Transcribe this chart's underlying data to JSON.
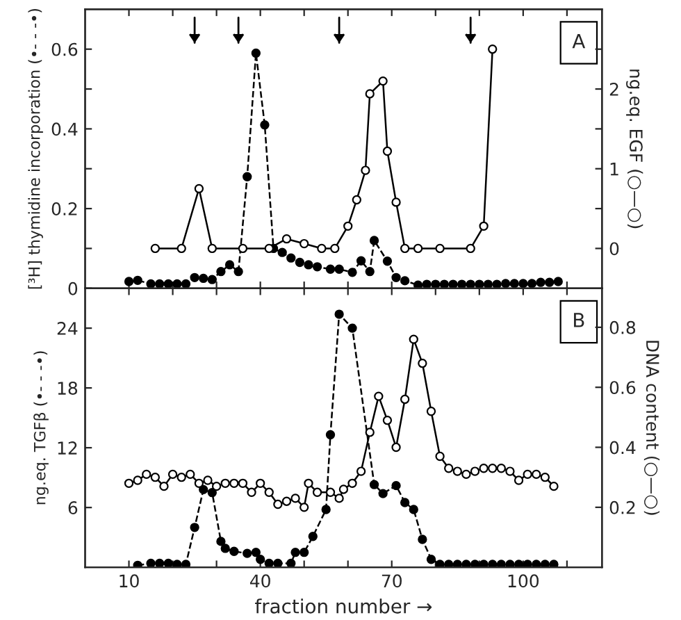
{
  "chart_data": [
    {
      "type": "line",
      "ylabel": "[³H] thymidine incorporation (•- - -•)",
      "y2label": "ng.eq. EGF (○—○)",
      "xlim": [
        0,
        118
      ],
      "xticks": [
        10,
        20,
        30,
        40,
        50,
        60,
        70,
        80,
        90,
        100,
        110
      ],
      "ylim": [
        0,
        0.7
      ],
      "yticks": [
        0,
        {
          "value": 0.1,
          "label": null
        },
        0.2,
        {
          "value": 0.3,
          "label": null
        },
        0.4,
        {
          "value": 0.5,
          "label": null
        },
        0.6
      ],
      "y2lim": [
        -0.5,
        3.0
      ],
      "y2ticks": [
        0,
        {
          "value": 0.5,
          "label": null
        },
        1,
        {
          "value": 1.5,
          "label": null
        },
        2,
        {
          "value": 2.5,
          "label": null
        }
      ],
      "tick_labels": "y",
      "grid": false,
      "legend": false,
      "marker": "circle",
      "annotations": [
        "A"
      ],
      "ref_lines": [
        {
          "axis": "x",
          "value": 25
        },
        {
          "axis": "x",
          "value": 35
        },
        {
          "axis": "x",
          "value": 58
        },
        {
          "axis": "x",
          "value": 88
        }
      ],
      "series": [
        {
          "color": "#000000",
          "line_style": "dashed",
          "x": [
            10,
            12,
            15,
            17,
            19,
            21,
            23,
            25,
            27,
            29,
            31,
            33,
            35,
            37,
            39,
            41,
            43,
            45,
            47,
            49,
            51,
            53,
            56,
            58,
            61,
            63,
            65,
            66,
            69,
            71,
            73,
            76,
            78,
            80,
            82,
            84,
            86,
            88,
            90,
            92,
            94,
            96,
            98,
            100,
            102,
            104,
            106,
            108
          ],
          "values": [
            0.017,
            0.02,
            0.011,
            0.011,
            0.011,
            0.011,
            0.011,
            0.027,
            0.025,
            0.022,
            0.042,
            0.059,
            0.042,
            0.28,
            0.59,
            0.41,
            0.1,
            0.09,
            0.076,
            0.065,
            0.059,
            0.054,
            0.048,
            0.048,
            0.04,
            0.069,
            0.042,
            0.12,
            0.068,
            0.027,
            0.019,
            0.008,
            0.01,
            0.01,
            0.01,
            0.01,
            0.01,
            0.01,
            0.01,
            0.01,
            0.01,
            0.012,
            0.012,
            0.012,
            0.012,
            0.015,
            0.015,
            0.017
          ]
        },
        {
          "color": "#000000",
          "line_style": "solid",
          "axis": "y2",
          "x": [
            16,
            22,
            26,
            29,
            36,
            42,
            46,
            50,
            54,
            57,
            60,
            62,
            64,
            65,
            68,
            69,
            71,
            73,
            76,
            81,
            88,
            91,
            93
          ],
          "values": [
            0,
            0,
            0.75,
            0,
            0,
            0,
            0.12,
            0.06,
            0,
            0,
            0.28,
            0.61,
            0.98,
            1.94,
            2.1,
            1.22,
            0.58,
            0,
            0,
            0,
            0,
            0.28,
            2.5
          ]
        }
      ]
    },
    {
      "type": "line",
      "ylabel": "ng.eq. TGFβ (•- - -•)",
      "y2label": "DNA content (○—○)",
      "xlabel": "fraction number →",
      "xlim": [
        0,
        118
      ],
      "xticks": [
        10,
        {
          "value": 20,
          "label": null
        },
        {
          "value": 30,
          "label": null
        },
        40,
        {
          "value": 50,
          "label": null
        },
        {
          "value": 60,
          "label": null
        },
        70,
        {
          "value": 80,
          "label": null
        },
        {
          "value": 90,
          "label": null
        },
        100,
        {
          "value": 110,
          "label": null
        }
      ],
      "ylim": [
        0,
        28
      ],
      "yticks": [
        6,
        12,
        18,
        24
      ],
      "y2lim": [
        0,
        0.93
      ],
      "y2ticks": [
        0.2,
        0.4,
        0.6,
        0.8
      ],
      "grid": false,
      "legend": false,
      "marker": "circle",
      "annotations": [
        "B"
      ],
      "series": [
        {
          "color": "#000000",
          "line_style": "dashed",
          "x": [
            12,
            15,
            17,
            19,
            21,
            23,
            25,
            27,
            29,
            31,
            32,
            34,
            37,
            39,
            40,
            42,
            44,
            47,
            48,
            50,
            52,
            55,
            56,
            58,
            61,
            66,
            68,
            71,
            73,
            75,
            77,
            79,
            81,
            83,
            85,
            87,
            89,
            91,
            93,
            95,
            97,
            99,
            101,
            103,
            105,
            107
          ],
          "values": [
            0.2,
            0.4,
            0.4,
            0.4,
            0.3,
            0.3,
            4.0,
            7.8,
            7.5,
            2.6,
            1.9,
            1.6,
            1.4,
            1.5,
            0.8,
            0.4,
            0.4,
            0.4,
            1.5,
            1.5,
            3.1,
            5.8,
            13.3,
            25.4,
            24.0,
            8.3,
            7.4,
            8.2,
            6.5,
            5.8,
            2.8,
            0.8,
            0.3,
            0.3,
            0.3,
            0.3,
            0.3,
            0.3,
            0.3,
            0.3,
            0.3,
            0.3,
            0.3,
            0.3,
            0.3,
            0.3
          ]
        },
        {
          "color": "#000000",
          "line_style": "solid",
          "axis": "y2",
          "x": [
            10,
            12,
            14,
            16,
            18,
            20,
            22,
            24,
            26,
            28,
            30,
            32,
            34,
            36,
            38,
            40,
            42,
            44,
            46,
            48,
            50,
            51,
            53,
            56,
            58,
            59,
            61,
            63,
            65,
            67,
            69,
            71,
            73,
            75,
            77,
            79,
            81,
            83,
            85,
            87,
            89,
            91,
            93,
            95,
            97,
            99,
            101,
            103,
            105,
            107
          ],
          "values": [
            0.28,
            0.29,
            0.31,
            0.3,
            0.27,
            0.31,
            0.3,
            0.31,
            0.28,
            0.29,
            0.27,
            0.28,
            0.28,
            0.28,
            0.25,
            0.28,
            0.25,
            0.21,
            0.22,
            0.23,
            0.2,
            0.28,
            0.25,
            0.25,
            0.23,
            0.26,
            0.28,
            0.32,
            0.45,
            0.57,
            0.49,
            0.4,
            0.56,
            0.76,
            0.68,
            0.52,
            0.37,
            0.33,
            0.32,
            0.31,
            0.32,
            0.33,
            0.33,
            0.33,
            0.32,
            0.29,
            0.31,
            0.31,
            0.3,
            0.27
          ]
        }
      ]
    }
  ]
}
